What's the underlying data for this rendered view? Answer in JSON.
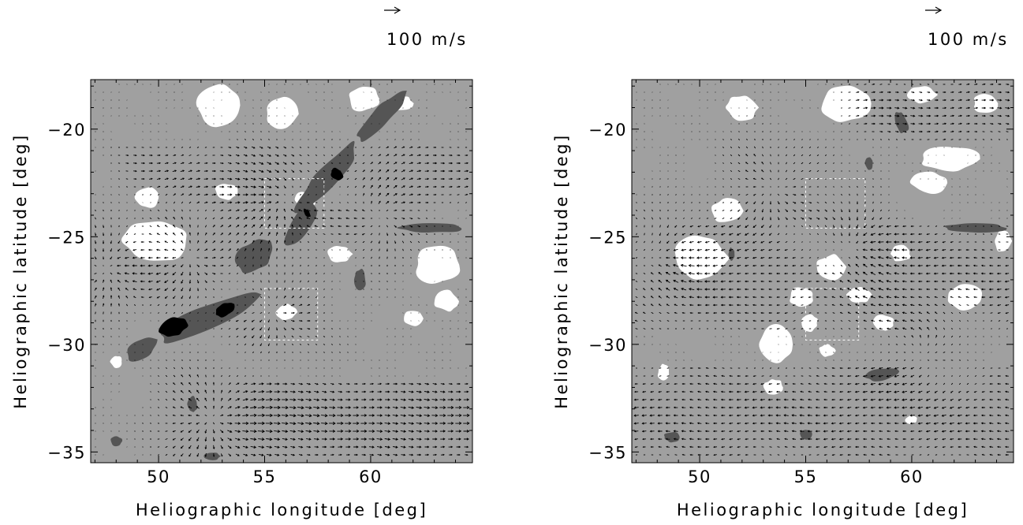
{
  "chart_data": [
    {
      "type": "vector-field",
      "panel": "left",
      "xlabel": "Heliographic longitude [deg]",
      "ylabel": "Heliographic latitude [deg]",
      "xlim": [
        46.8,
        64.8
      ],
      "ylim": [
        -35.5,
        -17.7
      ],
      "xticks": [
        {
          "value": 50,
          "label": "50"
        },
        {
          "value": 55,
          "label": "55"
        },
        {
          "value": 60,
          "label": "60"
        }
      ],
      "yticks": [
        {
          "value": -20,
          "label": "−20"
        },
        {
          "value": -25,
          "label": "−25"
        },
        {
          "value": -30,
          "label": "−30"
        },
        {
          "value": -35,
          "label": "−35"
        }
      ],
      "arrow_key": {
        "label": "100 m/s",
        "speed": 100
      },
      "background_color": "#a0a0a0",
      "white_patches": [
        {
          "x": 52.8,
          "y": -18.9,
          "rx": 1.1,
          "ry": 1.0
        },
        {
          "x": 55.8,
          "y": -19.3,
          "rx": 0.8,
          "ry": 0.8
        },
        {
          "x": 59.7,
          "y": -18.6,
          "rx": 0.8,
          "ry": 0.6
        },
        {
          "x": 61.5,
          "y": -18.8,
          "rx": 0.5,
          "ry": 0.4
        },
        {
          "x": 49.8,
          "y": -25.2,
          "rx": 1.6,
          "ry": 1.0
        },
        {
          "x": 49.5,
          "y": -23.2,
          "rx": 0.6,
          "ry": 0.5
        },
        {
          "x": 53.2,
          "y": -22.9,
          "rx": 0.6,
          "ry": 0.4
        },
        {
          "x": 56.9,
          "y": -23.3,
          "rx": 0.5,
          "ry": 0.4
        },
        {
          "x": 58.5,
          "y": -25.8,
          "rx": 0.6,
          "ry": 0.4
        },
        {
          "x": 63.2,
          "y": -26.3,
          "rx": 1.2,
          "ry": 0.9
        },
        {
          "x": 63.6,
          "y": -28.0,
          "rx": 0.6,
          "ry": 0.5
        },
        {
          "x": 62.0,
          "y": -28.8,
          "rx": 0.5,
          "ry": 0.4
        },
        {
          "x": 56.0,
          "y": -28.5,
          "rx": 0.5,
          "ry": 0.4
        },
        {
          "x": 48.0,
          "y": -30.8,
          "rx": 0.3,
          "ry": 0.3
        }
      ],
      "mid_dark_patches": [
        {
          "x": 58.0,
          "y": -22.2,
          "rx": 2.2,
          "ry": 0.55,
          "rot": -48
        },
        {
          "x": 60.5,
          "y": -19.4,
          "rx": 1.6,
          "ry": 0.45,
          "rot": -45
        },
        {
          "x": 56.7,
          "y": -24.4,
          "rx": 1.2,
          "ry": 0.45,
          "rot": -55
        },
        {
          "x": 54.5,
          "y": -25.9,
          "rx": 1.0,
          "ry": 0.7,
          "rot": -40
        },
        {
          "x": 52.3,
          "y": -28.8,
          "rx": 2.7,
          "ry": 0.65,
          "rot": -24
        },
        {
          "x": 49.2,
          "y": -30.2,
          "rx": 0.9,
          "ry": 0.45,
          "rot": -30
        },
        {
          "x": 62.9,
          "y": -24.6,
          "rx": 1.6,
          "ry": 0.22,
          "rot": 0
        },
        {
          "x": 59.5,
          "y": -27.0,
          "rx": 0.3,
          "ry": 0.5,
          "rot": 0
        },
        {
          "x": 51.6,
          "y": -32.8,
          "rx": 0.25,
          "ry": 0.4,
          "rot": 0
        },
        {
          "x": 48.0,
          "y": -34.5,
          "rx": 0.3,
          "ry": 0.25,
          "rot": 0
        },
        {
          "x": 52.5,
          "y": -35.2,
          "rx": 0.4,
          "ry": 0.2,
          "rot": 0
        }
      ],
      "black_patches": [
        {
          "x": 50.7,
          "y": -29.2,
          "rx": 0.7,
          "ry": 0.45,
          "rot": -20
        },
        {
          "x": 53.1,
          "y": -28.4,
          "rx": 0.5,
          "ry": 0.3,
          "rot": -30
        },
        {
          "x": 58.4,
          "y": -22.1,
          "rx": 0.25,
          "ry": 0.35,
          "rot": -40
        },
        {
          "x": 57.0,
          "y": -23.9,
          "rx": 0.12,
          "ry": 0.25,
          "rot": -40
        }
      ],
      "dashed_boxes": [
        {
          "x0": 55.0,
          "x1": 57.8,
          "y0": -24.6,
          "y1": -22.3
        },
        {
          "x0": 55.0,
          "x1": 57.5,
          "y0": -29.8,
          "y1": -27.4
        }
      ],
      "flow_centers": [
        {
          "x": 47.6,
          "y": -26.5,
          "s": -60
        },
        {
          "x": 51.5,
          "y": -26.0,
          "s": 70
        },
        {
          "x": 55.8,
          "y": -23.3,
          "s": -70
        },
        {
          "x": 55.5,
          "y": -28.5,
          "s": 60
        },
        {
          "x": 52.5,
          "y": -33.5,
          "s": 80
        },
        {
          "x": 60.5,
          "y": -24.0,
          "s": 50
        }
      ],
      "shear_jets": [
        {
          "y0": -35.5,
          "y1": -31.5,
          "x0": 55.0,
          "vx": 65,
          "vy": -4
        },
        {
          "y0": -23.5,
          "y1": -20.5,
          "x0": 49.0,
          "vx": 35,
          "vy": 3
        }
      ]
    },
    {
      "type": "vector-field",
      "panel": "right",
      "xlabel": "Heliographic longitude [deg]",
      "ylabel": "Heliographic latitude [deg]",
      "xlim": [
        46.8,
        64.8
      ],
      "ylim": [
        -35.5,
        -17.7
      ],
      "xticks": [
        {
          "value": 50,
          "label": "50"
        },
        {
          "value": 55,
          "label": "55"
        },
        {
          "value": 60,
          "label": "60"
        }
      ],
      "yticks": [
        {
          "value": -20,
          "label": "−20"
        },
        {
          "value": -25,
          "label": "−25"
        },
        {
          "value": -30,
          "label": "−30"
        },
        {
          "value": -35,
          "label": "−35"
        }
      ],
      "arrow_key": {
        "label": "100 m/s",
        "speed": 100
      },
      "background_color": "#a0a0a0",
      "white_patches": [
        {
          "x": 56.9,
          "y": -18.8,
          "rx": 1.3,
          "ry": 0.9
        },
        {
          "x": 52.0,
          "y": -19.0,
          "rx": 0.8,
          "ry": 0.6
        },
        {
          "x": 60.5,
          "y": -18.4,
          "rx": 0.7,
          "ry": 0.4
        },
        {
          "x": 63.5,
          "y": -18.8,
          "rx": 0.6,
          "ry": 0.5
        },
        {
          "x": 61.8,
          "y": -21.4,
          "rx": 1.4,
          "ry": 0.6
        },
        {
          "x": 60.8,
          "y": -22.5,
          "rx": 0.9,
          "ry": 0.5
        },
        {
          "x": 51.3,
          "y": -23.8,
          "rx": 0.8,
          "ry": 0.6
        },
        {
          "x": 50.0,
          "y": -26.0,
          "rx": 1.3,
          "ry": 1.2
        },
        {
          "x": 56.2,
          "y": -26.4,
          "rx": 0.7,
          "ry": 0.6
        },
        {
          "x": 54.8,
          "y": -27.8,
          "rx": 0.6,
          "ry": 0.5
        },
        {
          "x": 55.2,
          "y": -29.0,
          "rx": 0.4,
          "ry": 0.4
        },
        {
          "x": 53.6,
          "y": -30.0,
          "rx": 0.8,
          "ry": 0.9
        },
        {
          "x": 56.0,
          "y": -30.3,
          "rx": 0.4,
          "ry": 0.3
        },
        {
          "x": 57.5,
          "y": -27.7,
          "rx": 0.6,
          "ry": 0.4
        },
        {
          "x": 58.7,
          "y": -29.0,
          "rx": 0.5,
          "ry": 0.4
        },
        {
          "x": 59.5,
          "y": -25.8,
          "rx": 0.5,
          "ry": 0.4
        },
        {
          "x": 62.5,
          "y": -27.8,
          "rx": 0.9,
          "ry": 0.6
        },
        {
          "x": 64.3,
          "y": -25.2,
          "rx": 0.4,
          "ry": 0.6
        },
        {
          "x": 53.5,
          "y": -32.0,
          "rx": 0.5,
          "ry": 0.4
        },
        {
          "x": 48.3,
          "y": -31.3,
          "rx": 0.3,
          "ry": 0.4
        },
        {
          "x": 60.0,
          "y": -33.5,
          "rx": 0.3,
          "ry": 0.2
        }
      ],
      "mid_dark_patches": [
        {
          "x": 63.0,
          "y": -24.6,
          "rx": 1.6,
          "ry": 0.22,
          "rot": 0
        },
        {
          "x": 59.5,
          "y": -19.7,
          "rx": 0.3,
          "ry": 0.55,
          "rot": -20
        },
        {
          "x": 58.6,
          "y": -31.4,
          "rx": 0.8,
          "ry": 0.3,
          "rot": -10
        },
        {
          "x": 55.0,
          "y": -34.2,
          "rx": 0.3,
          "ry": 0.25,
          "rot": 0
        },
        {
          "x": 48.7,
          "y": -34.3,
          "rx": 0.4,
          "ry": 0.25,
          "rot": 0
        },
        {
          "x": 51.5,
          "y": -25.8,
          "rx": 0.15,
          "ry": 0.3,
          "rot": 0
        },
        {
          "x": 58.0,
          "y": -21.6,
          "rx": 0.2,
          "ry": 0.3,
          "rot": 0
        }
      ],
      "black_patches": [],
      "dashed_boxes": [
        {
          "x0": 55.0,
          "x1": 57.8,
          "y0": -24.6,
          "y1": -22.3
        },
        {
          "x0": 55.0,
          "x1": 57.5,
          "y0": -29.8,
          "y1": -27.4
        }
      ],
      "flow_centers": [
        {
          "x": 48.5,
          "y": -26.0,
          "s": -50
        },
        {
          "x": 53.5,
          "y": -22.8,
          "s": 60
        },
        {
          "x": 57.5,
          "y": -25.5,
          "s": -60
        },
        {
          "x": 60.5,
          "y": -30.5,
          "s": 50
        }
      ],
      "shear_jets": [
        {
          "y0": -35.5,
          "y1": -31.0,
          "x0": 46.8,
          "vx": -45,
          "vy": 0
        },
        {
          "y0": -29.5,
          "y1": -24.5,
          "x0": 60.0,
          "vx": -40,
          "vy": -3
        },
        {
          "y0": -20.5,
          "y1": -17.7,
          "x0": 58.0,
          "vx": 45,
          "vy": 0
        }
      ]
    }
  ]
}
